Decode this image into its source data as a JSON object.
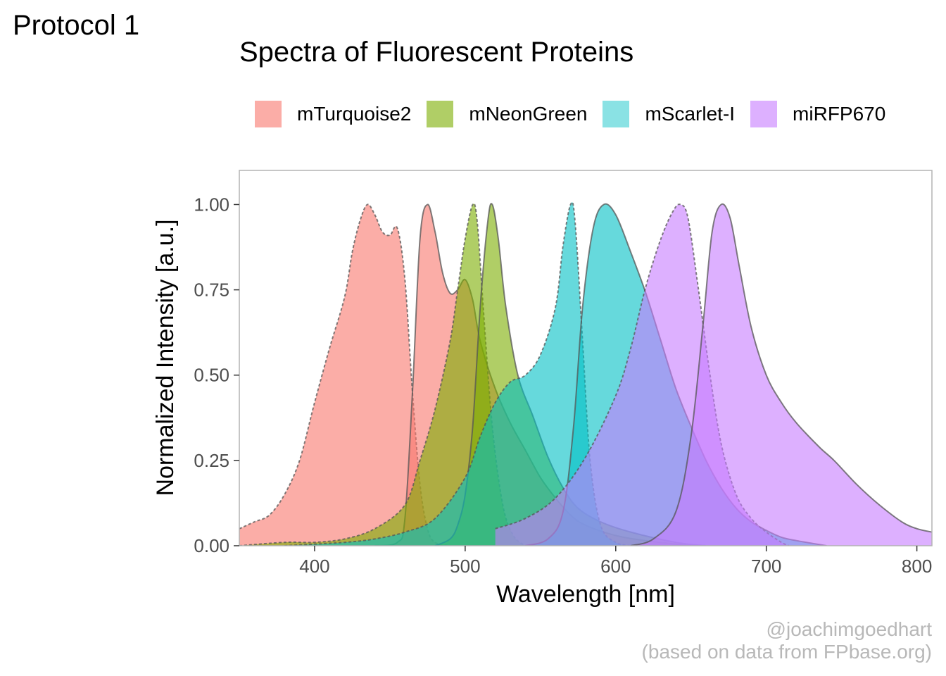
{
  "header": {
    "protocol": "Protocol 1"
  },
  "chart_data": {
    "type": "area",
    "title": "Spectra of Fluorescent Proteins",
    "xlabel": "Wavelength [nm]",
    "ylabel": "Normalized Intensity [a.u.]",
    "xlim": [
      350,
      810
    ],
    "ylim": [
      0,
      1.1
    ],
    "xticks": [
      400,
      500,
      600,
      700,
      800
    ],
    "yticks": [
      0,
      0.25,
      0.5,
      0.75,
      1.0
    ],
    "ytick_labels": [
      "0.00",
      "0.25",
      "0.50",
      "0.75",
      "1.00"
    ],
    "grid": false,
    "legend_position": "top",
    "legend_note": "dashed outline = excitation, solid outline = emission",
    "series": [
      {
        "name": "mTurquoise2",
        "color": "#F8766D",
        "excitation": [
          [
            350,
            0.05
          ],
          [
            360,
            0.07
          ],
          [
            370,
            0.09
          ],
          [
            380,
            0.15
          ],
          [
            390,
            0.25
          ],
          [
            400,
            0.42
          ],
          [
            410,
            0.58
          ],
          [
            420,
            0.73
          ],
          [
            425,
            0.86
          ],
          [
            430,
            0.95
          ],
          [
            435,
            1.0
          ],
          [
            440,
            0.97
          ],
          [
            445,
            0.92
          ],
          [
            450,
            0.91
          ],
          [
            455,
            0.93
          ],
          [
            460,
            0.78
          ],
          [
            465,
            0.45
          ],
          [
            470,
            0.18
          ],
          [
            475,
            0.05
          ],
          [
            480,
            0.01
          ],
          [
            490,
            0.0
          ]
        ],
        "emission": [
          [
            440,
            0.0
          ],
          [
            455,
            0.01
          ],
          [
            460,
            0.08
          ],
          [
            465,
            0.45
          ],
          [
            470,
            0.9
          ],
          [
            475,
            1.0
          ],
          [
            480,
            0.92
          ],
          [
            485,
            0.8
          ],
          [
            490,
            0.74
          ],
          [
            495,
            0.75
          ],
          [
            500,
            0.78
          ],
          [
            505,
            0.72
          ],
          [
            510,
            0.6
          ],
          [
            520,
            0.46
          ],
          [
            530,
            0.36
          ],
          [
            540,
            0.28
          ],
          [
            550,
            0.2
          ],
          [
            560,
            0.14
          ],
          [
            570,
            0.09
          ],
          [
            580,
            0.06
          ],
          [
            600,
            0.03
          ],
          [
            620,
            0.015
          ],
          [
            650,
            0.0
          ]
        ]
      },
      {
        "name": "mNeonGreen",
        "color": "#7CAE00",
        "excitation": [
          [
            350,
            0.0
          ],
          [
            380,
            0.01
          ],
          [
            400,
            0.01
          ],
          [
            420,
            0.02
          ],
          [
            440,
            0.05
          ],
          [
            460,
            0.12
          ],
          [
            470,
            0.25
          ],
          [
            480,
            0.4
          ],
          [
            490,
            0.6
          ],
          [
            495,
            0.75
          ],
          [
            500,
            0.9
          ],
          [
            505,
            1.0
          ],
          [
            508,
            0.95
          ],
          [
            512,
            0.7
          ],
          [
            518,
            0.35
          ],
          [
            525,
            0.12
          ],
          [
            532,
            0.03
          ],
          [
            540,
            0.0
          ]
        ],
        "emission": [
          [
            480,
            0.0
          ],
          [
            490,
            0.02
          ],
          [
            495,
            0.06
          ],
          [
            500,
            0.15
          ],
          [
            505,
            0.35
          ],
          [
            510,
            0.7
          ],
          [
            515,
            0.95
          ],
          [
            518,
            1.0
          ],
          [
            522,
            0.9
          ],
          [
            527,
            0.7
          ],
          [
            535,
            0.5
          ],
          [
            545,
            0.38
          ],
          [
            555,
            0.26
          ],
          [
            565,
            0.17
          ],
          [
            575,
            0.11
          ],
          [
            590,
            0.07
          ],
          [
            610,
            0.04
          ],
          [
            640,
            0.01
          ],
          [
            660,
            0.0
          ]
        ]
      },
      {
        "name": "mScarlet-I",
        "color": "#00BFC4",
        "excitation": [
          [
            380,
            0.0
          ],
          [
            420,
            0.01
          ],
          [
            440,
            0.02
          ],
          [
            460,
            0.04
          ],
          [
            480,
            0.08
          ],
          [
            500,
            0.2
          ],
          [
            510,
            0.32
          ],
          [
            520,
            0.42
          ],
          [
            530,
            0.48
          ],
          [
            540,
            0.5
          ],
          [
            550,
            0.56
          ],
          [
            560,
            0.7
          ],
          [
            565,
            0.88
          ],
          [
            570,
            1.0
          ],
          [
            573,
            0.95
          ],
          [
            578,
            0.6
          ],
          [
            583,
            0.25
          ],
          [
            590,
            0.06
          ],
          [
            600,
            0.01
          ],
          [
            610,
            0.0
          ]
        ],
        "emission": [
          [
            540,
            0.0
          ],
          [
            555,
            0.02
          ],
          [
            565,
            0.1
          ],
          [
            572,
            0.35
          ],
          [
            578,
            0.7
          ],
          [
            585,
            0.93
          ],
          [
            592,
            1.0
          ],
          [
            600,
            0.97
          ],
          [
            610,
            0.86
          ],
          [
            620,
            0.74
          ],
          [
            630,
            0.6
          ],
          [
            640,
            0.46
          ],
          [
            650,
            0.35
          ],
          [
            660,
            0.25
          ],
          [
            670,
            0.17
          ],
          [
            680,
            0.11
          ],
          [
            690,
            0.07
          ],
          [
            700,
            0.045
          ],
          [
            710,
            0.025
          ],
          [
            720,
            0.015
          ],
          [
            740,
            0.0
          ]
        ]
      },
      {
        "name": "miRFP670",
        "color": "#C77CFF",
        "excitation": [
          [
            520,
            0.05
          ],
          [
            540,
            0.08
          ],
          [
            560,
            0.14
          ],
          [
            580,
            0.26
          ],
          [
            600,
            0.44
          ],
          [
            610,
            0.58
          ],
          [
            620,
            0.76
          ],
          [
            630,
            0.9
          ],
          [
            638,
            0.98
          ],
          [
            643,
            1.0
          ],
          [
            648,
            0.96
          ],
          [
            655,
            0.75
          ],
          [
            662,
            0.52
          ],
          [
            670,
            0.3
          ],
          [
            680,
            0.15
          ],
          [
            690,
            0.08
          ],
          [
            700,
            0.04
          ],
          [
            710,
            0.01
          ],
          [
            715,
            0.0
          ]
        ],
        "emission": [
          [
            610,
            0.0
          ],
          [
            625,
            0.02
          ],
          [
            640,
            0.1
          ],
          [
            650,
            0.32
          ],
          [
            658,
            0.65
          ],
          [
            664,
            0.92
          ],
          [
            670,
            1.0
          ],
          [
            676,
            0.96
          ],
          [
            682,
            0.82
          ],
          [
            690,
            0.64
          ],
          [
            700,
            0.5
          ],
          [
            710,
            0.42
          ],
          [
            720,
            0.36
          ],
          [
            735,
            0.29
          ],
          [
            745,
            0.25
          ],
          [
            760,
            0.18
          ],
          [
            775,
            0.12
          ],
          [
            790,
            0.07
          ],
          [
            800,
            0.05
          ],
          [
            810,
            0.04
          ]
        ]
      }
    ]
  },
  "credits": {
    "line1": "@joachimgoedhart",
    "line2": "(based on data from FPbase.org)"
  }
}
